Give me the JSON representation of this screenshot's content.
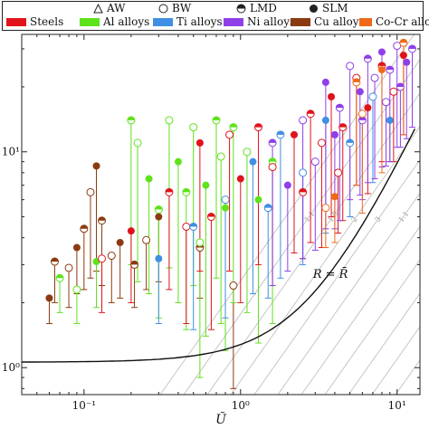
{
  "legend": {
    "markers": [
      {
        "label": "AW",
        "shape": "triangle-open"
      },
      {
        "label": "BW",
        "shape": "circle-open"
      },
      {
        "label": "LMD",
        "shape": "circle-half"
      },
      {
        "label": "SLM",
        "shape": "circle-filled"
      }
    ],
    "materials": [
      {
        "label": "Steels",
        "color": "#e0131b"
      },
      {
        "label": "Al alloys",
        "color": "#5ee21c"
      },
      {
        "label": "Ti alloys",
        "color": "#3f8fe3"
      },
      {
        "label": "Ni alloys",
        "color": "#8f3fe8"
      },
      {
        "label": "Cu alloys",
        "color": "#8b3a0f"
      },
      {
        "label": "Co-Cr alloys",
        "color": "#ef6a18"
      }
    ]
  },
  "chart_data": {
    "type": "scatter",
    "xscale": "log",
    "yscale": "log",
    "xlim": [
      0.04,
      14
    ],
    "ylim": [
      0.75,
      35
    ],
    "xlabel": "Ũ",
    "ylabel": "",
    "xticks": [
      {
        "v": 0.1,
        "label": "10⁻¹"
      },
      {
        "v": 1,
        "label": "10⁰"
      },
      {
        "v": 10,
        "label": "10¹"
      }
    ],
    "yticks": [
      {
        "v": 1,
        "label": "10⁰"
      },
      {
        "v": 10,
        "label": "10¹"
      }
    ],
    "curve_label": "R = R̄",
    "contour_levels": [
      "1.1",
      "1.5",
      "2",
      "3"
    ],
    "series": [
      {
        "name": "Cu alloys",
        "color": "#8b3a0f",
        "points": [
          {
            "x": 0.06,
            "y": 2.1,
            "lo": 1.6
          },
          {
            "x": 0.065,
            "y": 3.1,
            "lo": 2.0
          },
          {
            "x": 0.08,
            "y": 2.9,
            "lo": 1.9
          },
          {
            "x": 0.09,
            "y": 3.6,
            "lo": 2.2
          },
          {
            "x": 0.1,
            "y": 4.4,
            "lo": 2.3
          },
          {
            "x": 0.11,
            "y": 6.5,
            "lo": 2.6
          },
          {
            "x": 0.12,
            "y": 8.6,
            "lo": 2.8
          },
          {
            "x": 0.13,
            "y": 4.8,
            "lo": 2.4
          },
          {
            "x": 0.15,
            "y": 3.3,
            "lo": 2.0
          },
          {
            "x": 0.17,
            "y": 3.8,
            "lo": 2.1
          },
          {
            "x": 0.21,
            "y": 3.0,
            "lo": 1.9
          },
          {
            "x": 0.25,
            "y": 3.9,
            "lo": 2.3
          },
          {
            "x": 0.3,
            "y": 5.0,
            "lo": 2.5
          },
          {
            "x": 0.55,
            "y": 3.6,
            "lo": 2.1
          },
          {
            "x": 0.9,
            "y": 2.4,
            "lo": 0.8
          }
        ]
      },
      {
        "name": "Al alloys",
        "color": "#5ee21c",
        "points": [
          {
            "x": 0.07,
            "y": 2.6,
            "lo": 1.8
          },
          {
            "x": 0.09,
            "y": 2.3,
            "lo": 1.6
          },
          {
            "x": 0.12,
            "y": 3.1,
            "lo": 1.9
          },
          {
            "x": 0.2,
            "y": 14.0,
            "lo": 3.0
          },
          {
            "x": 0.22,
            "y": 11.0,
            "lo": 2.5
          },
          {
            "x": 0.26,
            "y": 7.5,
            "lo": 2.2
          },
          {
            "x": 0.3,
            "y": 5.4,
            "lo": 1.7
          },
          {
            "x": 0.35,
            "y": 14.0,
            "lo": 2.9
          },
          {
            "x": 0.4,
            "y": 9.0,
            "lo": 2.0
          },
          {
            "x": 0.45,
            "y": 6.5,
            "lo": 1.5
          },
          {
            "x": 0.5,
            "y": 13.0,
            "lo": 2.4
          },
          {
            "x": 0.6,
            "y": 7.0,
            "lo": 1.4
          },
          {
            "x": 0.7,
            "y": 14.0,
            "lo": 2.6
          },
          {
            "x": 0.75,
            "y": 9.5,
            "lo": 1.6
          },
          {
            "x": 0.8,
            "y": 5.5,
            "lo": 1.2
          },
          {
            "x": 0.9,
            "y": 13.0,
            "lo": 2.0
          },
          {
            "x": 1.1,
            "y": 10.0,
            "lo": 1.8
          },
          {
            "x": 1.3,
            "y": 6.0,
            "lo": 1.3
          },
          {
            "x": 1.6,
            "y": 9.0,
            "lo": 1.6
          },
          {
            "x": 0.55,
            "y": 3.8,
            "lo": 0.9
          }
        ]
      },
      {
        "name": "Steels",
        "color": "#e0131b",
        "points": [
          {
            "x": 0.13,
            "y": 3.2,
            "lo": 1.8
          },
          {
            "x": 0.2,
            "y": 4.3,
            "lo": 2.0
          },
          {
            "x": 0.35,
            "y": 6.5,
            "lo": 2.3
          },
          {
            "x": 0.45,
            "y": 4.5,
            "lo": 1.6
          },
          {
            "x": 0.55,
            "y": 11.0,
            "lo": 2.8
          },
          {
            "x": 0.65,
            "y": 5.0,
            "lo": 1.5
          },
          {
            "x": 0.85,
            "y": 12.0,
            "lo": 2.8
          },
          {
            "x": 1.0,
            "y": 7.5,
            "lo": 2.0
          },
          {
            "x": 1.3,
            "y": 13.0,
            "lo": 3.0
          },
          {
            "x": 1.6,
            "y": 8.5,
            "lo": 2.4
          },
          {
            "x": 2.2,
            "y": 12.0,
            "lo": 3.4
          },
          {
            "x": 2.8,
            "y": 15.0,
            "lo": 3.8
          },
          {
            "x": 3.3,
            "y": 11.0,
            "lo": 3.6
          },
          {
            "x": 3.8,
            "y": 18.0,
            "lo": 5.0
          },
          {
            "x": 4.5,
            "y": 13.0,
            "lo": 4.8
          },
          {
            "x": 5.5,
            "y": 22.0,
            "lo": 7.0
          },
          {
            "x": 6.5,
            "y": 16.0,
            "lo": 6.4
          },
          {
            "x": 8.0,
            "y": 25.0,
            "lo": 9.0
          },
          {
            "x": 9.5,
            "y": 19.0,
            "lo": 9.0
          },
          {
            "x": 11.0,
            "y": 28.0,
            "lo": 12.0
          },
          {
            "x": 2.5,
            "y": 6.5,
            "lo": 3.2
          },
          {
            "x": 4.2,
            "y": 8.0,
            "lo": 4.2
          }
        ]
      },
      {
        "name": "Ti alloys",
        "color": "#3f8fe3",
        "points": [
          {
            "x": 0.3,
            "y": 3.2,
            "lo": 1.6
          },
          {
            "x": 0.5,
            "y": 4.5,
            "lo": 1.5
          },
          {
            "x": 0.8,
            "y": 6.0,
            "lo": 1.7
          },
          {
            "x": 1.2,
            "y": 9.0,
            "lo": 2.2
          },
          {
            "x": 1.8,
            "y": 12.0,
            "lo": 2.6
          },
          {
            "x": 2.5,
            "y": 8.0,
            "lo": 3.0
          },
          {
            "x": 3.5,
            "y": 14.0,
            "lo": 4.2
          },
          {
            "x": 5.0,
            "y": 11.0,
            "lo": 5.0
          },
          {
            "x": 7.0,
            "y": 18.0,
            "lo": 7.2
          },
          {
            "x": 9.0,
            "y": 14.0,
            "lo": 9.0
          },
          {
            "x": 1.5,
            "y": 5.5,
            "lo": 2.1
          }
        ]
      },
      {
        "name": "Ni alloys",
        "color": "#8f3fe8",
        "points": [
          {
            "x": 1.6,
            "y": 11.0,
            "lo": 2.4
          },
          {
            "x": 2.5,
            "y": 14.0,
            "lo": 3.2
          },
          {
            "x": 3.5,
            "y": 21.0,
            "lo": 4.4
          },
          {
            "x": 4.3,
            "y": 16.0,
            "lo": 4.8
          },
          {
            "x": 5.0,
            "y": 25.0,
            "lo": 6.0
          },
          {
            "x": 5.8,
            "y": 19.0,
            "lo": 6.3
          },
          {
            "x": 6.5,
            "y": 27.0,
            "lo": 7.2
          },
          {
            "x": 7.2,
            "y": 22.0,
            "lo": 7.5
          },
          {
            "x": 8.0,
            "y": 29.0,
            "lo": 8.5
          },
          {
            "x": 9.0,
            "y": 24.0,
            "lo": 9.0
          },
          {
            "x": 10.0,
            "y": 31.0,
            "lo": 10.5
          },
          {
            "x": 11.5,
            "y": 26.0,
            "lo": 11.5
          },
          {
            "x": 12.5,
            "y": 30.0,
            "lo": 13.0
          },
          {
            "x": 3.0,
            "y": 9.0,
            "lo": 3.5
          },
          {
            "x": 4.0,
            "y": 12.0,
            "lo": 4.4
          },
          {
            "x": 6.0,
            "y": 14.0,
            "lo": 6.0
          },
          {
            "x": 8.5,
            "y": 17.0,
            "lo": 8.6
          },
          {
            "x": 2.0,
            "y": 7.0,
            "lo": 2.8
          },
          {
            "x": 10.5,
            "y": 20.0,
            "lo": 10.5
          }
        ]
      },
      {
        "name": "Co-Cr alloys",
        "color": "#ef6a18",
        "points": [
          {
            "x": 3.5,
            "y": 5.5,
            "lo": 3.6
          },
          {
            "x": 4.0,
            "y": 6.2,
            "lo": 3.8
          },
          {
            "x": 5.5,
            "y": 21.0,
            "lo": 7.0
          },
          {
            "x": 6.0,
            "y": 15.0,
            "lo": 5.2
          },
          {
            "x": 8.0,
            "y": 24.0,
            "lo": 8.0
          },
          {
            "x": 11.0,
            "y": 32.0,
            "lo": 12.0
          }
        ]
      }
    ]
  }
}
